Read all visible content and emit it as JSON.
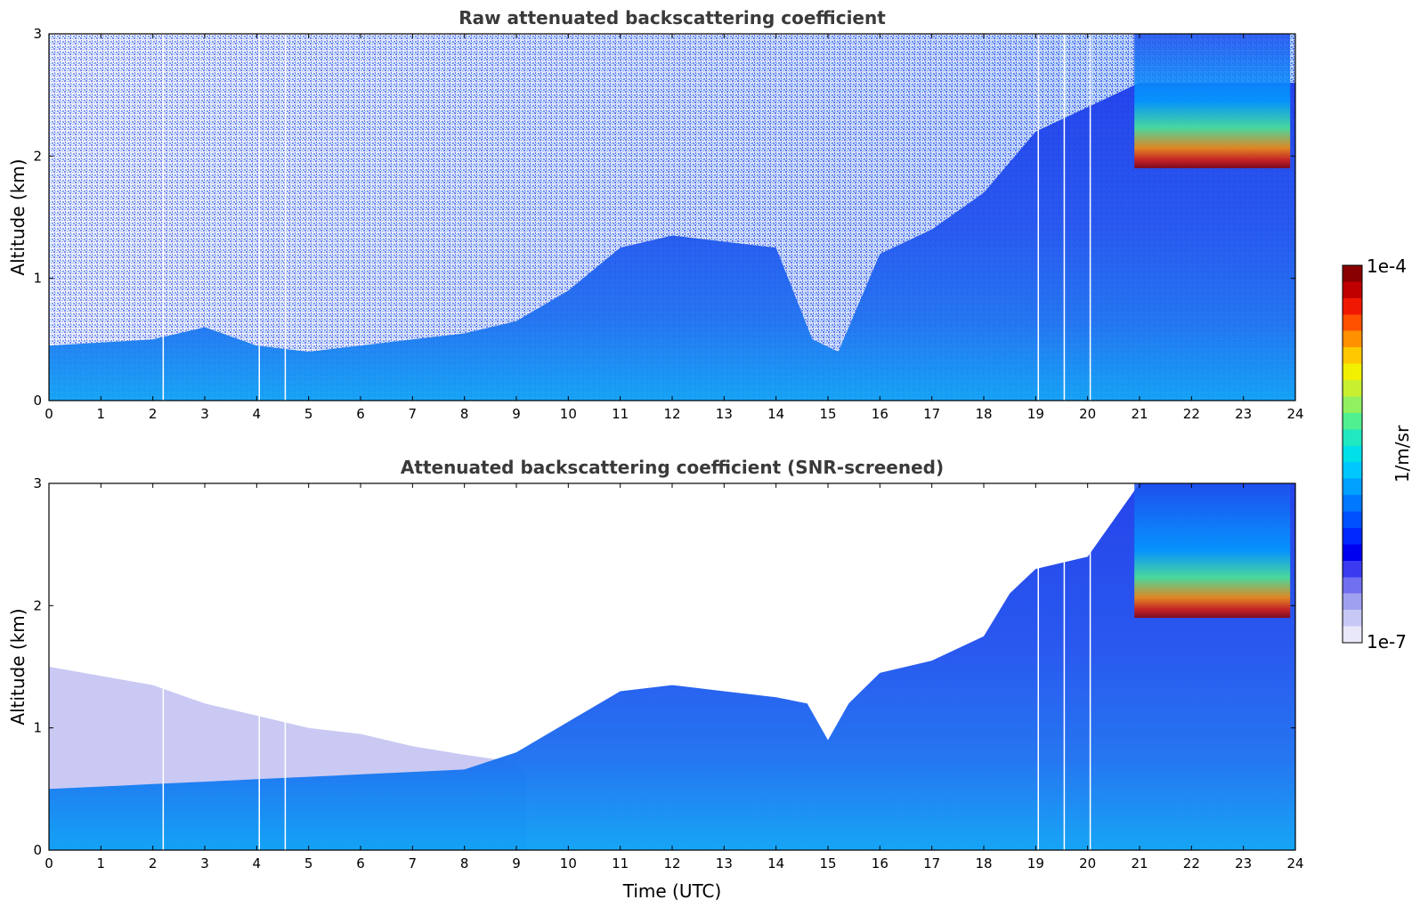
{
  "chart_data": [
    {
      "type": "heatmap",
      "title": "Raw attenuated backscattering coefficient",
      "xlabel": "",
      "ylabel": "Altitude (km)",
      "xlim": [
        0,
        24
      ],
      "ylim": [
        0,
        3
      ],
      "xticks": [
        "0",
        "1",
        "2",
        "3",
        "4",
        "5",
        "6",
        "7",
        "8",
        "9",
        "10",
        "11",
        "12",
        "13",
        "14",
        "15",
        "16",
        "17",
        "18",
        "19",
        "20",
        "21",
        "22",
        "23",
        "24"
      ],
      "yticks": [
        "0",
        "1",
        "2",
        "3"
      ],
      "data_gaps_utc": [
        2.2,
        4.05,
        4.55,
        19.05,
        19.55,
        20.05
      ],
      "boundary_layer_top_km": [
        [
          0,
          0.45
        ],
        [
          2,
          0.5
        ],
        [
          3,
          0.6
        ],
        [
          4,
          0.45
        ],
        [
          5,
          0.4
        ],
        [
          6,
          0.45
        ],
        [
          7,
          0.5
        ],
        [
          8,
          0.55
        ],
        [
          9,
          0.65
        ],
        [
          10,
          0.9
        ],
        [
          11,
          1.25
        ],
        [
          12,
          1.35
        ],
        [
          13,
          1.3
        ],
        [
          14,
          1.25
        ],
        [
          14.7,
          0.5
        ],
        [
          15.2,
          0.4
        ],
        [
          16,
          1.2
        ],
        [
          17,
          1.4
        ],
        [
          18,
          1.7
        ],
        [
          19,
          2.2
        ],
        [
          20,
          2.4
        ],
        [
          21,
          2.6
        ],
        [
          24,
          2.6
        ]
      ],
      "cloud_layer": {
        "time_start": 20.9,
        "time_end": 23.9,
        "base_km": 1.9,
        "top_km": 3.0
      },
      "grid": false
    },
    {
      "type": "heatmap",
      "title": "Attenuated backscattering coefficient (SNR-screened)",
      "xlabel": "Time (UTC)",
      "ylabel": "Altitude (km)",
      "xlim": [
        0,
        24
      ],
      "ylim": [
        0,
        3
      ],
      "xticks": [
        "0",
        "1",
        "2",
        "3",
        "4",
        "5",
        "6",
        "7",
        "8",
        "9",
        "10",
        "11",
        "12",
        "13",
        "14",
        "15",
        "16",
        "17",
        "18",
        "19",
        "20",
        "21",
        "22",
        "23",
        "24"
      ],
      "yticks": [
        "0",
        "1",
        "2",
        "3"
      ],
      "screened_top_km": [
        [
          0,
          1.5
        ],
        [
          1,
          1.4
        ],
        [
          2,
          1.3
        ],
        [
          3,
          1.2
        ],
        [
          4,
          1.15
        ],
        [
          5,
          1.05
        ],
        [
          6,
          1.0
        ],
        [
          7,
          0.95
        ],
        [
          8,
          0.85
        ],
        [
          9,
          0.8
        ],
        [
          10,
          1.05
        ],
        [
          11,
          1.3
        ],
        [
          12,
          1.35
        ],
        [
          13,
          1.3
        ],
        [
          14,
          1.25
        ],
        [
          14.6,
          1.2
        ],
        [
          15,
          0.9
        ],
        [
          15.4,
          1.2
        ],
        [
          16,
          1.45
        ],
        [
          17,
          1.55
        ],
        [
          18,
          1.75
        ],
        [
          18.5,
          2.1
        ],
        [
          19,
          2.3
        ],
        [
          20,
          2.4
        ],
        [
          21,
          3.0
        ],
        [
          24,
          3.0
        ]
      ],
      "cloud_layer": {
        "time_start": 20.9,
        "time_end": 23.9,
        "base_km": 1.9,
        "top_km": 3.0
      },
      "grid": false
    }
  ],
  "colorbar": {
    "label": "1/m/sr",
    "max_label": "1e-4",
    "min_label": "1e-7",
    "colormap": [
      "#e8e8fa",
      "#c8c8f5",
      "#a0a0f0",
      "#7070f0",
      "#3a3af0",
      "#0000f0",
      "#0028ff",
      "#0050ff",
      "#0078ff",
      "#00a0ff",
      "#00c8ff",
      "#00e0e8",
      "#20e8c0",
      "#50f090",
      "#90f060",
      "#c8f030",
      "#f0f000",
      "#ffc800",
      "#ff9000",
      "#ff5000",
      "#f01800",
      "#c00000",
      "#880000"
    ]
  }
}
